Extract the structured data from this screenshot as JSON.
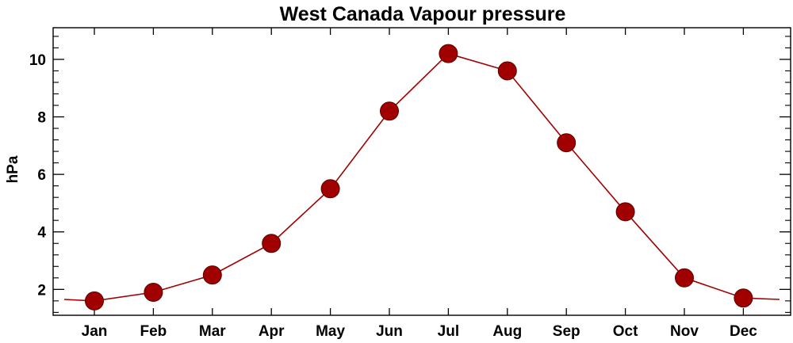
{
  "chart_data": {
    "type": "line",
    "title": "West Canada Vapour pressure",
    "xlabel": "",
    "ylabel": "hPa",
    "categories": [
      "Jan",
      "Feb",
      "Mar",
      "Apr",
      "May",
      "Jun",
      "Jul",
      "Aug",
      "Sep",
      "Oct",
      "Nov",
      "Dec"
    ],
    "series": [
      {
        "values": [
          1.6,
          1.9,
          2.5,
          3.6,
          5.5,
          8.2,
          10.2,
          9.6,
          7.1,
          4.7,
          2.4,
          1.7
        ],
        "color": "#a10000"
      }
    ],
    "line_extension_edges": {
      "left_value": 1.65,
      "right_value": 1.65
    },
    "yticks": [
      2,
      4,
      6,
      8,
      10
    ],
    "ylim": [
      1.1,
      11.1
    ],
    "grid": false,
    "legend": "none"
  }
}
